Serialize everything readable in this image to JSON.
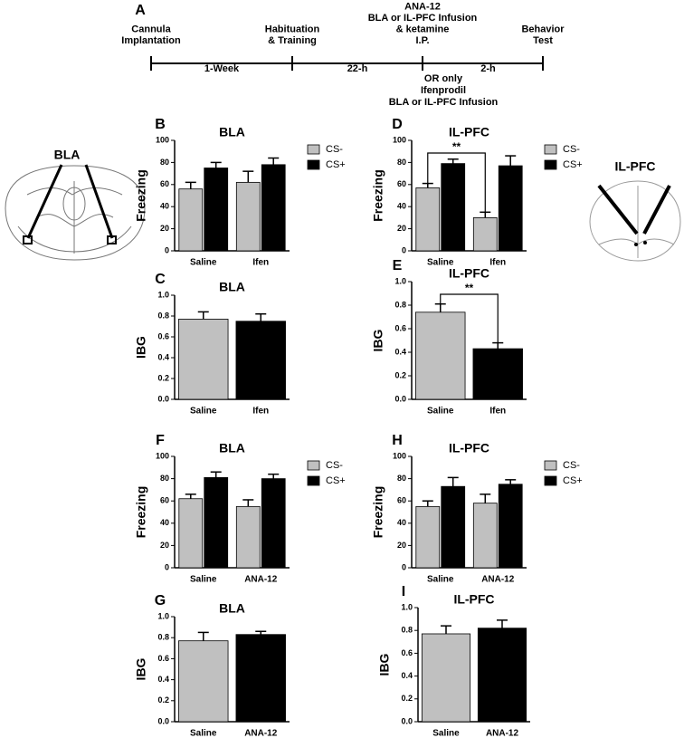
{
  "timeline": {
    "panel": "A",
    "events": [
      {
        "lines": [
          "Cannula",
          "Implantation"
        ]
      },
      {
        "lines": [
          "Habituation",
          "& Training"
        ]
      },
      {
        "lines": [
          "ANA-12",
          "BLA or IL-PFC Infusion",
          "& ketamine",
          "I.P."
        ]
      },
      {
        "lines": [
          "Behavior",
          "Test"
        ]
      }
    ],
    "intervals": [
      "1-Week",
      "22-h",
      "2-h"
    ],
    "alternative": [
      "OR only",
      "Ifenprodil",
      "BLA or IL-PFC Infusion"
    ]
  },
  "brain_labels": [
    "BLA",
    "IL-PFC"
  ],
  "chart_data": [
    {
      "type": "bar",
      "panel": "B",
      "title": "BLA",
      "y_label": "Freezing",
      "categories": [
        "Saline",
        "Ifen"
      ],
      "series": [
        {
          "name": "CS-",
          "color": "#c0c0c0",
          "values": [
            56,
            62
          ],
          "errors": [
            6,
            10
          ]
        },
        {
          "name": "CS+",
          "color": "#000000",
          "values": [
            75,
            78
          ],
          "errors": [
            5,
            6
          ]
        }
      ],
      "ylim": [
        0,
        100
      ],
      "yticks": [
        0,
        20,
        40,
        60,
        80,
        100
      ]
    },
    {
      "type": "bar",
      "panel": "C",
      "title": "BLA",
      "y_label": "IBG",
      "categories": [
        "Saline",
        "Ifen"
      ],
      "values": [
        0.77,
        0.75
      ],
      "errors": [
        0.07,
        0.07
      ],
      "colors": [
        "#c0c0c0",
        "#000000"
      ],
      "ylim": [
        0,
        1
      ],
      "yticks": [
        {
          "value": 0,
          "label": "0.0"
        },
        0.2,
        0.4,
        0.6,
        0.8,
        {
          "value": 1,
          "label": "1.0"
        }
      ]
    },
    {
      "type": "bar",
      "panel": "D",
      "title": "IL-PFC",
      "y_label": "Freezing",
      "categories": [
        "Saline",
        "Ifen"
      ],
      "series": [
        {
          "name": "CS-",
          "color": "#c0c0c0",
          "values": [
            57,
            30
          ],
          "errors": [
            4,
            5
          ]
        },
        {
          "name": "CS+",
          "color": "#000000",
          "values": [
            79,
            77
          ],
          "errors": [
            4,
            9
          ]
        }
      ],
      "ylim": [
        0,
        100
      ],
      "yticks": [
        0,
        20,
        40,
        60,
        80,
        100
      ],
      "annotation": "**"
    },
    {
      "type": "bar",
      "panel": "E",
      "title": "IL-PFC",
      "y_label": "IBG",
      "categories": [
        "Saline",
        "Ifen"
      ],
      "values": [
        0.74,
        0.43
      ],
      "errors": [
        0.07,
        0.05
      ],
      "colors": [
        "#c0c0c0",
        "#000000"
      ],
      "ylim": [
        0,
        1
      ],
      "yticks": [
        {
          "value": 0,
          "label": "0.0"
        },
        0.2,
        0.4,
        0.6,
        0.8,
        {
          "value": 1,
          "label": "1.0"
        }
      ],
      "annotation": "**"
    },
    {
      "type": "bar",
      "panel": "F",
      "title": "BLA",
      "y_label": "Freezing",
      "categories": [
        "Saline",
        "ANA-12"
      ],
      "series": [
        {
          "name": "CS-",
          "color": "#c0c0c0",
          "values": [
            62,
            55
          ],
          "errors": [
            4,
            6
          ]
        },
        {
          "name": "CS+",
          "color": "#000000",
          "values": [
            81,
            80
          ],
          "errors": [
            5,
            4
          ]
        }
      ],
      "ylim": [
        0,
        100
      ],
      "yticks": [
        0,
        20,
        40,
        60,
        80,
        100
      ]
    },
    {
      "type": "bar",
      "panel": "G",
      "title": "BLA",
      "y_label": "IBG",
      "categories": [
        "Saline",
        "ANA-12"
      ],
      "values": [
        0.77,
        0.83
      ],
      "errors": [
        0.08,
        0.03
      ],
      "colors": [
        "#c0c0c0",
        "#000000"
      ],
      "ylim": [
        0,
        1
      ],
      "yticks": [
        {
          "value": 0,
          "label": "0.0"
        },
        0.2,
        0.4,
        0.6,
        0.8,
        {
          "value": 1,
          "label": "1.0"
        }
      ]
    },
    {
      "type": "bar",
      "panel": "H",
      "title": "IL-PFC",
      "y_label": "Freezing",
      "categories": [
        "Saline",
        "ANA-12"
      ],
      "series": [
        {
          "name": "CS-",
          "color": "#c0c0c0",
          "values": [
            55,
            58
          ],
          "errors": [
            5,
            8
          ]
        },
        {
          "name": "CS+",
          "color": "#000000",
          "values": [
            73,
            75
          ],
          "errors": [
            8,
            4
          ]
        }
      ],
      "ylim": [
        0,
        100
      ],
      "yticks": [
        0,
        20,
        40,
        60,
        80,
        100
      ]
    },
    {
      "type": "bar",
      "panel": "I",
      "title": "IL-PFC",
      "y_label": "IBG",
      "categories": [
        "Saline",
        "ANA-12"
      ],
      "values": [
        0.77,
        0.82
      ],
      "errors": [
        0.07,
        0.07
      ],
      "colors": [
        "#c0c0c0",
        "#000000"
      ],
      "ylim": [
        0,
        1
      ],
      "yticks": [
        {
          "value": 0,
          "label": "0.0"
        },
        0.2,
        0.4,
        0.6,
        0.8,
        {
          "value": 1,
          "label": "1.0"
        }
      ]
    }
  ]
}
